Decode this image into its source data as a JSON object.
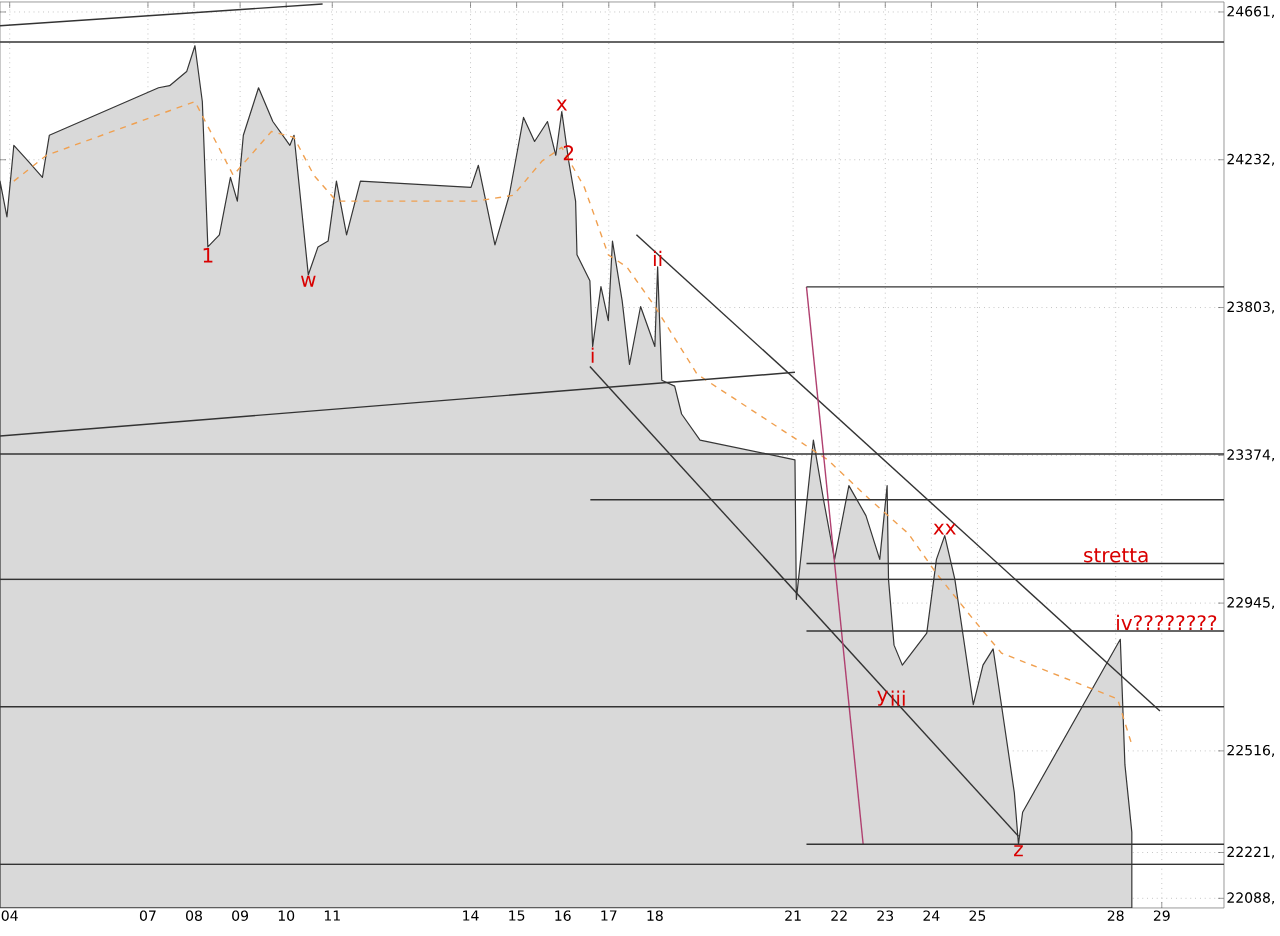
{
  "chart_data": {
    "type": "area",
    "xlim": [
      3.79,
      30.35
    ],
    "ylim": [
      22060,
      24690
    ],
    "xticks": [
      {
        "value": 4,
        "label": "04"
      },
      {
        "value": 7,
        "label": "07"
      },
      {
        "value": 8,
        "label": "08"
      },
      {
        "value": 9,
        "label": "09"
      },
      10,
      11,
      14,
      15,
      16,
      17,
      18,
      21,
      22,
      23,
      24,
      25,
      28,
      29
    ],
    "yticks": [
      {
        "value": 22088,
        "label": "22088,"
      },
      {
        "value": 22221,
        "label": "22221,"
      },
      {
        "value": 22516,
        "label": "22516,"
      },
      {
        "value": 22945,
        "label": "22945,"
      },
      {
        "value": 23374,
        "label": "23374,"
      },
      {
        "value": 23803,
        "label": "23803,"
      },
      {
        "value": 24232,
        "label": "24232,"
      },
      {
        "value": 24661,
        "label": "24661,"
      }
    ],
    "grid": true,
    "series": [
      {
        "color": "#d9d9d9",
        "x": [
          3.79,
          3.94,
          4.09,
          4.4,
          4.71,
          4.86,
          7.23,
          7.47,
          7.84,
          8.02,
          8.18,
          8.3,
          8.55,
          8.79,
          8.94,
          9.07,
          9.4,
          9.71,
          10.08,
          10.17,
          10.48,
          10.69,
          10.91,
          11.09,
          11.31,
          11.61,
          14.01,
          14.17,
          14.53,
          14.84,
          15.15,
          15.39,
          15.67,
          15.85,
          15.98,
          16.13,
          16.28,
          16.31,
          16.59,
          16.65,
          16.83,
          16.99,
          17.08,
          17.29,
          17.45,
          17.69,
          18.0,
          18.06,
          18.15,
          18.43,
          18.58,
          18.98,
          21.04,
          21.07,
          21.44,
          21.66,
          21.9,
          22.21,
          22.58,
          22.88,
          23.04,
          23.07,
          23.19,
          23.37,
          23.9,
          24.11,
          24.29,
          24.51,
          24.91,
          25.12,
          25.34,
          25.52,
          25.8,
          25.89,
          25.98,
          28.1,
          28.2,
          28.35
        ],
        "values": [
          24170,
          24066,
          24274,
          24228,
          24181,
          24303,
          24441,
          24447,
          24488,
          24563,
          24401,
          23979,
          24014,
          24181,
          24112,
          24303,
          24441,
          24343,
          24274,
          24303,
          23898,
          23979,
          23996,
          24170,
          24014,
          24170,
          24152,
          24216,
          23985,
          24129,
          24355,
          24285,
          24343,
          24245,
          24372,
          24228,
          24112,
          23956,
          23881,
          23690,
          23864,
          23765,
          23996,
          23823,
          23638,
          23806,
          23690,
          23921,
          23592,
          23575,
          23494,
          23418,
          23361,
          22956,
          23418,
          23245,
          23072,
          23286,
          23199,
          23072,
          23286,
          23014,
          22823,
          22765,
          22858,
          23072,
          23141,
          23014,
          22650,
          22765,
          22812,
          22650,
          22395,
          22245,
          22338,
          22840,
          22476,
          22280
        ]
      },
      {
        "type": "line",
        "color": "#f0a050",
        "line_style": "dashed",
        "x": [
          4.09,
          4.8,
          8.02,
          8.85,
          9.68,
          10.17,
          10.6,
          11.09,
          14.13,
          14.93,
          15.55,
          15.98,
          16.47,
          16.99,
          17.39,
          18.0,
          18.92,
          21.75,
          22.67,
          23.5,
          24.11,
          24.91,
          25.52,
          28.04,
          28.35
        ],
        "values": [
          24170,
          24245,
          24401,
          24187,
          24314,
          24297,
          24187,
          24112,
          24112,
          24129,
          24228,
          24268,
          24152,
          23956,
          23921,
          23806,
          23609,
          23361,
          23245,
          23147,
          23031,
          22898,
          22800,
          22667,
          22534
        ]
      },
      {
        "type": "line",
        "color": "#333333",
        "x": [
          3.79,
          10.79
        ],
        "values": [
          24621,
          24684
        ]
      },
      {
        "type": "line",
        "color": "#333333",
        "x": [
          3.79,
          21.04
        ],
        "values": [
          23430,
          23615
        ]
      },
      {
        "type": "line",
        "color": "#333333",
        "x": [
          16.59,
          25.89
        ],
        "values": [
          23632,
          22268
        ]
      },
      {
        "type": "line",
        "color": "#333333",
        "x": [
          17.6,
          28.96
        ],
        "values": [
          24014,
          22632
        ]
      },
      {
        "type": "line",
        "color": "#b04070",
        "x": [
          21.29,
          22.52
        ],
        "values": [
          23863,
          22245
        ]
      },
      {
        "type": "line",
        "color": "#333333",
        "x": [
          21.29,
          30.35
        ],
        "values": [
          23863,
          23863
        ]
      },
      {
        "type": "line",
        "color": "#333333",
        "x": [
          16.6,
          30.35
        ],
        "values": [
          23245,
          23245
        ]
      },
      {
        "type": "line",
        "color": "#333333",
        "x": [
          21.29,
          30.35
        ],
        "values": [
          23060,
          23060
        ]
      },
      {
        "type": "line",
        "color": "#333333",
        "x": [
          21.29,
          30.35
        ],
        "values": [
          22864,
          22864
        ]
      },
      {
        "type": "line",
        "color": "#333333",
        "x": [
          21.29,
          30.35
        ],
        "values": [
          22245,
          22245
        ]
      }
    ],
    "ref_lines": [
      {
        "axis": "y",
        "value": 24574,
        "color": "#333333"
      },
      {
        "axis": "y",
        "value": 23378,
        "color": "#333333"
      },
      {
        "axis": "y",
        "value": 23014,
        "color": "#333333"
      },
      {
        "axis": "y",
        "value": 22644,
        "color": "#333333"
      },
      {
        "axis": "y",
        "value": 22187,
        "color": "#333333"
      }
    ],
    "annotations": [
      {
        "text": "1",
        "x": 8.3,
        "y": 23979
      },
      {
        "text": "w",
        "x": 10.48,
        "y": 23898
      },
      {
        "text": "x",
        "x": 15.98,
        "y": 24372
      },
      {
        "text": "2",
        "x": 16.13,
        "y": 24228
      },
      {
        "text": "i",
        "x": 16.65,
        "y": 23690
      },
      {
        "text": "ii",
        "x": 18.06,
        "y": 23921
      },
      {
        "text": "xx",
        "x": 24.29,
        "y": 23141
      },
      {
        "text": "stretta",
        "x": 28.01,
        "y": 23060
      },
      {
        "text": "iv????????",
        "x": 29.1,
        "y": 22864
      },
      {
        "text": "y",
        "x": 22.94,
        "y": 22644
      },
      {
        "text": "iii",
        "x": 23.28,
        "y": 22644
      },
      {
        "text": "z",
        "x": 25.89,
        "y": 22245
      }
    ]
  }
}
